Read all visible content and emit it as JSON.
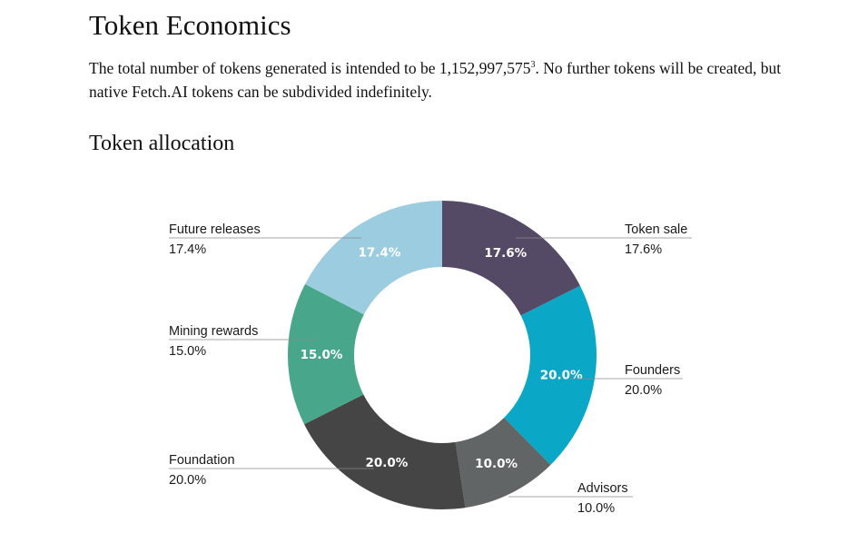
{
  "document": {
    "title": "Token Economics",
    "intro": {
      "before": "The total number of tokens generated is intended to be 1,152,997,575",
      "footnote": "3",
      "after": ". No further tokens will be created, but native Fetch.AI tokens can be subdivided indefinitely."
    },
    "section_title": "Token allocation"
  },
  "chart_data": {
    "type": "pie",
    "variant": "donut",
    "title": "Token allocation",
    "slices": [
      {
        "name": "Token sale",
        "value": 17.6,
        "label": "17.6%",
        "color": "#554a66"
      },
      {
        "name": "Founders",
        "value": 20.0,
        "label": "20.0%",
        "color": "#0aa7c6"
      },
      {
        "name": "Advisors",
        "value": 10.0,
        "label": "10.0%",
        "color": "#626565"
      },
      {
        "name": "Foundation",
        "value": 20.0,
        "label": "20.0%",
        "color": "#454545"
      },
      {
        "name": "Mining rewards",
        "value": 15.0,
        "label": "15.0%",
        "color": "#48a78a"
      },
      {
        "name": "Future releases",
        "value": 17.4,
        "label": "17.4%",
        "color": "#9bcce0"
      }
    ],
    "start_angle_deg": 0,
    "direction": "clockwise"
  }
}
